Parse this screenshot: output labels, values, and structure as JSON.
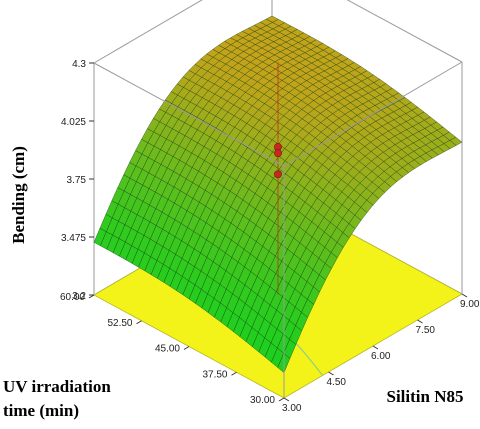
{
  "chart_data": {
    "type": "surface3d",
    "zlabel": "Bending (cm)",
    "xlabel": "Silitin N85",
    "ylabel_line1": "UV irradiation",
    "ylabel_line2": "time (min)",
    "x_ticks": [
      "3.00",
      "4.50",
      "6.00",
      "7.50",
      "9.00"
    ],
    "y_ticks": [
      "30.00",
      "37.50",
      "45.00",
      "52.50",
      "60.00"
    ],
    "z_ticks": [
      "3.2",
      "3.475",
      "3.75",
      "4.025",
      "4.3"
    ],
    "xlim": [
      3,
      9
    ],
    "ylim": [
      30,
      60
    ],
    "zlim": [
      3.2,
      4.3
    ],
    "surface_corners": {
      "x3_y30": 3.32,
      "x3_y60": 3.45,
      "x9_y30": 3.92,
      "x9_y60": 4.03
    },
    "design_points": [
      {
        "x": 6.0,
        "y": 45.0,
        "z": 3.9
      },
      {
        "x": 6.0,
        "y": 45.0,
        "z": 3.87
      },
      {
        "x": 6.0,
        "y": 45.0,
        "z": 3.77
      }
    ],
    "colors": {
      "surface_low": "#1fcf1f",
      "surface_high": "#c8a21a",
      "floor": "#f3f31a",
      "point": "#c9281e",
      "box": "#9a9a9a"
    }
  }
}
